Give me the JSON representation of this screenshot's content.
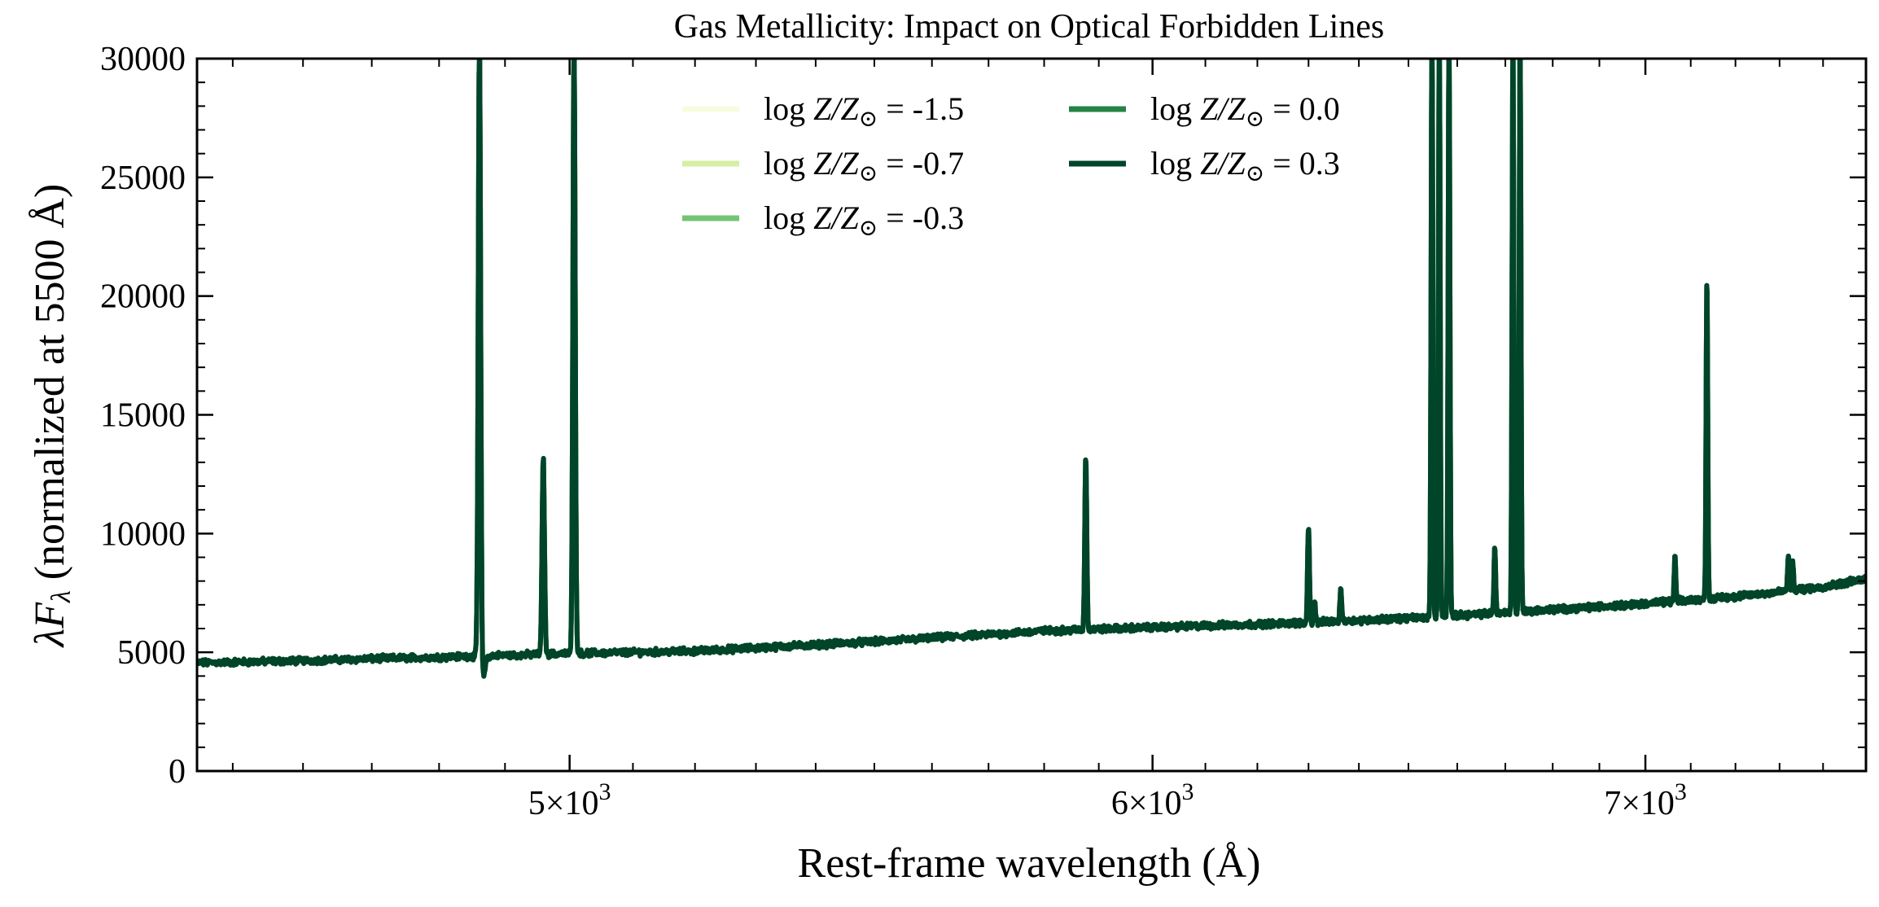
{
  "chart_data": {
    "type": "line",
    "title": "Gas Metallicity: Impact on Optical Forbidden Lines",
    "xlabel": "Rest-frame wavelength (Å)",
    "ylabel": "λF_λ (normalized at 5500 Å)",
    "ylabel_parts": {
      "lambda": "λ",
      "F": "F",
      "sub": "λ",
      "rest": " (normalized at 5500 Å)"
    },
    "x_scale": "log",
    "xlim": [
      4450,
      7500
    ],
    "ylim": [
      0,
      30000
    ],
    "x_ticks": [
      {
        "value": 5000,
        "mantissa": "5",
        "times": "×",
        "base": "10",
        "exp": "3"
      },
      {
        "value": 6000,
        "mantissa": "6",
        "times": "×",
        "base": "10",
        "exp": "3"
      },
      {
        "value": 7000,
        "mantissa": "7",
        "times": "×",
        "base": "10",
        "exp": "3"
      }
    ],
    "y_ticks": [
      {
        "value": 0,
        "label": "0"
      },
      {
        "value": 5000,
        "label": "5000"
      },
      {
        "value": 10000,
        "label": "10000"
      },
      {
        "value": 15000,
        "label": "15000"
      },
      {
        "value": 20000,
        "label": "20000"
      },
      {
        "value": 25000,
        "label": "25000"
      },
      {
        "value": 30000,
        "label": "30000"
      }
    ],
    "grid": false,
    "legend": {
      "placement": "top-center",
      "columns": 2
    },
    "continuum": {
      "x": [
        4450,
        4600,
        4800,
        5000,
        5200,
        5500,
        5800,
        6000,
        6300,
        6563,
        6800,
        7000,
        7200,
        7400,
        7500
      ],
      "y": [
        4550,
        4650,
        4800,
        4950,
        5050,
        5450,
        5900,
        6050,
        6250,
        6500,
        6800,
        7050,
        7350,
        7750,
        8100
      ]
    },
    "emission_lines": [
      {
        "x": 4861,
        "peak": 31000,
        "dip": 3900
      },
      {
        "x": 4959,
        "peak": 13300
      },
      {
        "x": 5007,
        "peak": 31000
      },
      {
        "x": 5876,
        "peak": 13300
      },
      {
        "x": 6300,
        "peak": 10400
      },
      {
        "x": 6312,
        "peak": 7100
      },
      {
        "x": 6364,
        "peak": 7650
      },
      {
        "x": 6548,
        "peak": 31000
      },
      {
        "x": 6563,
        "peak": 31000
      },
      {
        "x": 6583,
        "peak": 31000
      },
      {
        "x": 6678,
        "peak": 9400
      },
      {
        "x": 6716,
        "peak": 31000
      },
      {
        "x": 6731,
        "peak": 31000
      },
      {
        "x": 7065,
        "peak": 9000
      },
      {
        "x": 7136,
        "peak": 20800
      },
      {
        "x": 7320,
        "peak": 9100
      },
      {
        "x": 7330,
        "peak": 8800
      }
    ],
    "series": [
      {
        "name_prefix": "log Z/Z",
        "name_value": " = -1.5",
        "color": "#f7fcdf"
      },
      {
        "name_prefix": "log Z/Z",
        "name_value": " = -0.7",
        "color": "#d6efa3"
      },
      {
        "name_prefix": "log Z/Z",
        "name_value": " = -0.3",
        "color": "#74c476"
      },
      {
        "name_prefix": "log Z/Z",
        "name_value": " = 0.0",
        "color": "#238443"
      },
      {
        "name_prefix": "log Z/Z",
        "name_value": " = 0.3",
        "color": "#00442a"
      }
    ]
  }
}
